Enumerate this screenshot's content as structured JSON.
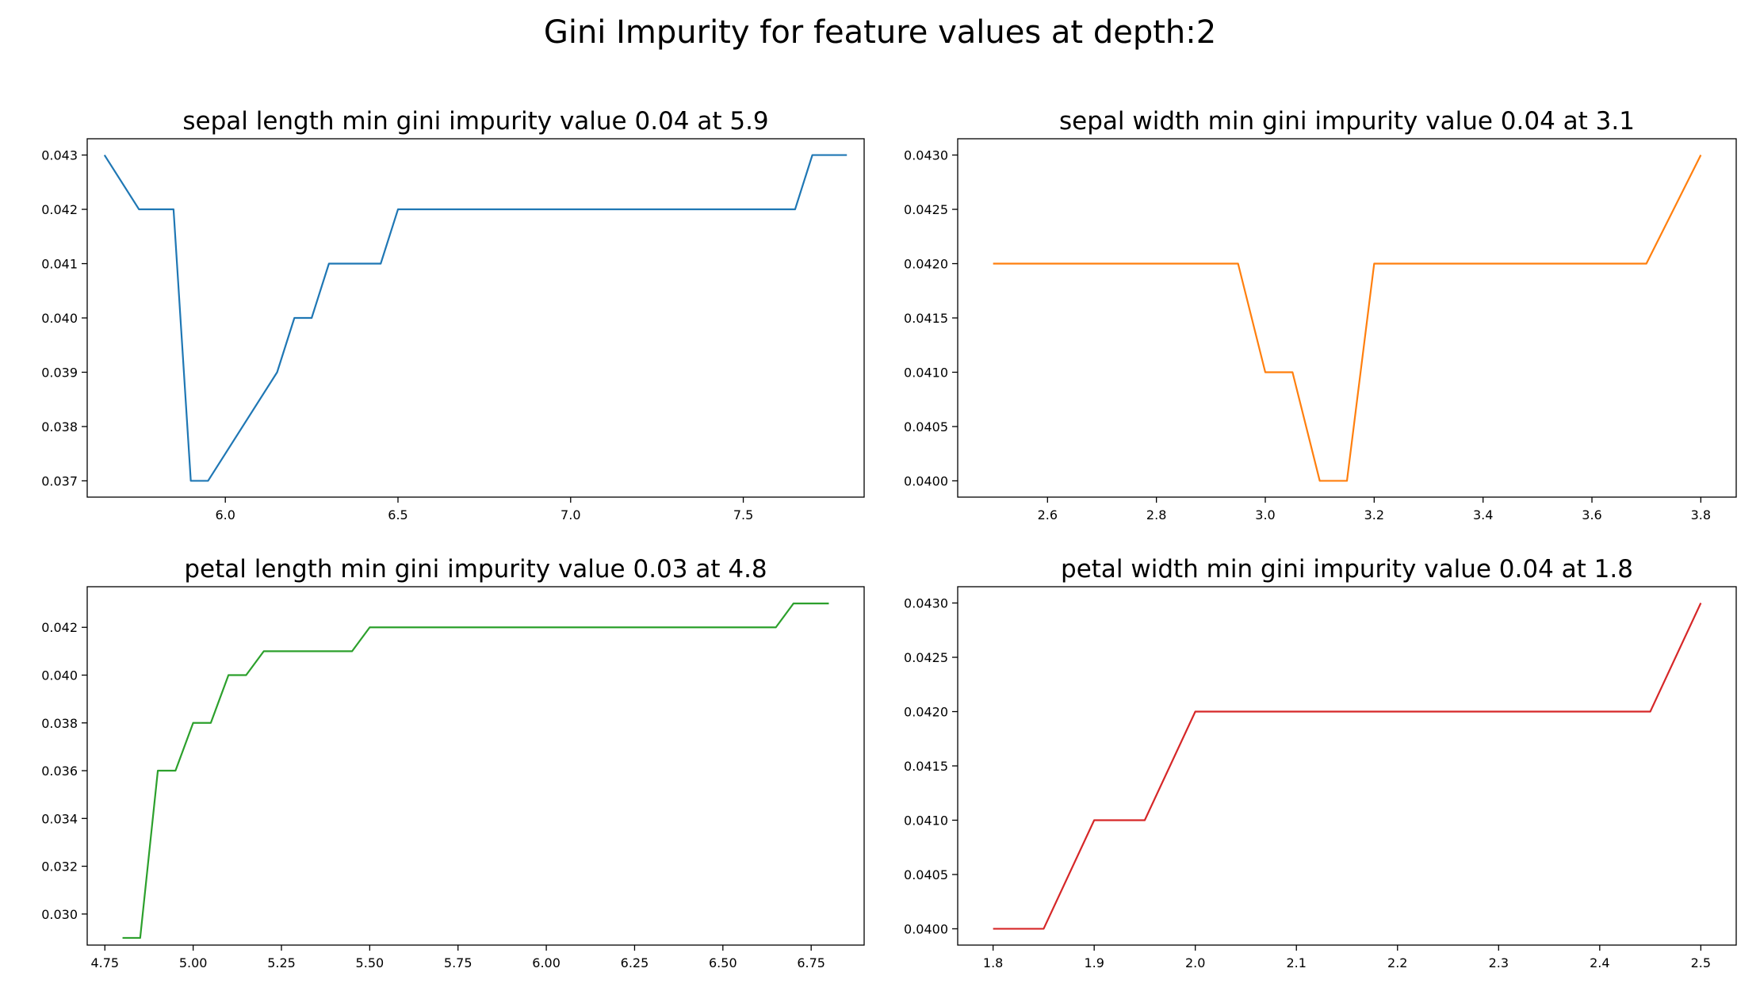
{
  "figure": {
    "title": "Gini Impurity for feature values at depth:2"
  },
  "chart_data": [
    {
      "type": "line",
      "title": "sepal length min gini impurity value 0.04 at 5.9",
      "xlabel": "",
      "ylabel": "",
      "color": "#1f77b4",
      "xlim": [
        5.6,
        7.85
      ],
      "ylim": [
        0.0367,
        0.0433
      ],
      "xticks": [
        6.0,
        6.5,
        7.0,
        7.5
      ],
      "xtick_labels": [
        "6.0",
        "6.5",
        "7.0",
        "7.5"
      ],
      "yticks": [
        0.037,
        0.038,
        0.039,
        0.04,
        0.041,
        0.042,
        0.043
      ],
      "ytick_labels": [
        "0.037",
        "0.038",
        "0.039",
        "0.040",
        "0.041",
        "0.042",
        "0.043"
      ],
      "x": [
        5.65,
        5.75,
        5.85,
        5.9,
        5.95,
        6.15,
        6.2,
        6.25,
        6.3,
        6.45,
        6.5,
        7.65,
        7.7,
        7.8
      ],
      "y": [
        0.043,
        0.042,
        0.042,
        0.037,
        0.037,
        0.039,
        0.04,
        0.04,
        0.041,
        0.041,
        0.042,
        0.042,
        0.043,
        0.043
      ],
      "grid": false
    },
    {
      "type": "line",
      "title": "sepal width min gini impurity value 0.04 at 3.1",
      "xlabel": "",
      "ylabel": "",
      "color": "#ff7f0e",
      "xlim": [
        2.435,
        3.865
      ],
      "ylim": [
        0.03985,
        0.04315
      ],
      "xticks": [
        2.6,
        2.8,
        3.0,
        3.2,
        3.4,
        3.6,
        3.8
      ],
      "xtick_labels": [
        "2.6",
        "2.8",
        "3.0",
        "3.2",
        "3.4",
        "3.6",
        "3.8"
      ],
      "yticks": [
        0.04,
        0.0405,
        0.041,
        0.0415,
        0.042,
        0.0425,
        0.043
      ],
      "ytick_labels": [
        "0.0400",
        "0.0405",
        "0.0410",
        "0.0415",
        "0.0420",
        "0.0425",
        "0.0430"
      ],
      "x": [
        2.5,
        2.95,
        3.0,
        3.05,
        3.1,
        3.15,
        3.2,
        3.7,
        3.8
      ],
      "y": [
        0.042,
        0.042,
        0.041,
        0.041,
        0.04,
        0.04,
        0.042,
        0.042,
        0.043
      ],
      "grid": false
    },
    {
      "type": "line",
      "title": "petal length min gini impurity value 0.03 at 4.8",
      "xlabel": "",
      "ylabel": "",
      "color": "#2ca02c",
      "xlim": [
        4.7,
        6.9
      ],
      "ylim": [
        0.0287,
        0.0437
      ],
      "xticks": [
        4.75,
        5.0,
        5.25,
        5.5,
        5.75,
        6.0,
        6.25,
        6.5,
        6.75
      ],
      "xtick_labels": [
        "4.75",
        "5.00",
        "5.25",
        "5.50",
        "5.75",
        "6.00",
        "6.25",
        "6.50",
        "6.75"
      ],
      "yticks": [
        0.03,
        0.032,
        0.034,
        0.036,
        0.038,
        0.04,
        0.042
      ],
      "ytick_labels": [
        "0.030",
        "0.032",
        "0.034",
        "0.036",
        "0.038",
        "0.040",
        "0.042"
      ],
      "x": [
        4.8,
        4.85,
        4.9,
        4.95,
        5.0,
        5.05,
        5.1,
        5.15,
        5.2,
        5.45,
        5.5,
        6.65,
        6.7,
        6.8
      ],
      "y": [
        0.029,
        0.029,
        0.036,
        0.036,
        0.038,
        0.038,
        0.04,
        0.04,
        0.041,
        0.041,
        0.042,
        0.042,
        0.043,
        0.043
      ],
      "grid": false
    },
    {
      "type": "line",
      "title": "petal width min gini impurity value 0.04 at 1.8",
      "xlabel": "",
      "ylabel": "",
      "color": "#d62728",
      "xlim": [
        1.765,
        2.535
      ],
      "ylim": [
        0.03985,
        0.04315
      ],
      "xticks": [
        1.8,
        1.9,
        2.0,
        2.1,
        2.2,
        2.3,
        2.4,
        2.5
      ],
      "xtick_labels": [
        "1.8",
        "1.9",
        "2.0",
        "2.1",
        "2.2",
        "2.3",
        "2.4",
        "2.5"
      ],
      "yticks": [
        0.04,
        0.0405,
        0.041,
        0.0415,
        0.042,
        0.0425,
        0.043
      ],
      "ytick_labels": [
        "0.0400",
        "0.0405",
        "0.0410",
        "0.0415",
        "0.0420",
        "0.0425",
        "0.0430"
      ],
      "x": [
        1.8,
        1.85,
        1.9,
        1.95,
        2.0,
        2.45,
        2.5
      ],
      "y": [
        0.04,
        0.04,
        0.041,
        0.041,
        0.042,
        0.042,
        0.043
      ],
      "grid": false
    }
  ]
}
